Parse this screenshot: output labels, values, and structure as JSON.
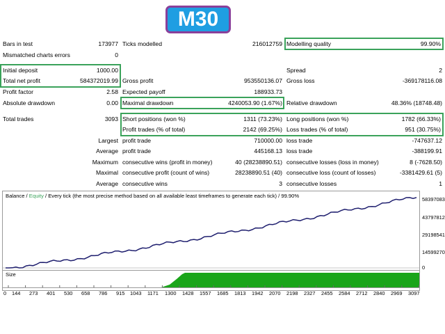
{
  "badge": "M30",
  "stats": {
    "bars_label": "Bars in test",
    "bars_value": "173977",
    "ticks_label": "Ticks modelled",
    "ticks_value": "216012759",
    "modelling_label": "Modelling quality",
    "modelling_value": "99.90%",
    "mismatched_label": "Mismatched charts errors",
    "mismatched_value": "0",
    "initial_deposit_label": "Initial deposit",
    "initial_deposit_value": "1000.00",
    "spread_label": "Spread",
    "spread_value": "2",
    "total_net_profit_label": "Total net profit",
    "total_net_profit_value": "584372019.99",
    "gross_profit_label": "Gross profit",
    "gross_profit_value": "953550136.07",
    "gross_loss_label": "Gross loss",
    "gross_loss_value": "-369178116.08",
    "profit_factor_label": "Profit factor",
    "profit_factor_value": "2.58",
    "expected_payoff_label": "Expected payoff",
    "expected_payoff_value": "188933.73",
    "abs_drawdown_label": "Absolute drawdown",
    "abs_drawdown_value": "0.00",
    "max_drawdown_label": "Maximal drawdown",
    "max_drawdown_value": "4240053.90 (1.67%)",
    "rel_drawdown_label": "Relative drawdown",
    "rel_drawdown_value": "48.36% (18748.48)",
    "total_trades_label": "Total trades",
    "total_trades_value": "3093",
    "short_label": "Short positions (won %)",
    "short_value": "1311 (73.23%)",
    "long_label": "Long positions (won %)",
    "long_value": "1782 (66.33%)",
    "profit_trades_label": "Profit trades (% of total)",
    "profit_trades_value": "2142 (69.25%)",
    "loss_trades_label": "Loss trades (% of total)",
    "loss_trades_value": "951 (30.75%)",
    "largest_label": "Largest",
    "largest_profit_label": "profit trade",
    "largest_profit_value": "710000.00",
    "largest_loss_label": "loss trade",
    "largest_loss_value": "-747637.12",
    "average_label": "Average",
    "average_profit_label": "profit trade",
    "average_profit_value": "445168.13",
    "average_loss_label": "loss trade",
    "average_loss_value": "-388199.91",
    "maximum_label": "Maximum",
    "max_cons_wins_label": "consecutive wins (profit in money)",
    "max_cons_wins_value": "40 (28238890.51)",
    "max_cons_losses_label": "consecutive losses (loss in money)",
    "max_cons_losses_value": "8 (-7628.50)",
    "maximal_label": "Maximal",
    "maximal_cons_profit_label": "consecutive profit (count of wins)",
    "maximal_cons_profit_value": "28238890.51 (40)",
    "maximal_cons_loss_label": "consecutive loss (count of losses)",
    "maximal_cons_loss_value": "-3381429.61 (5)",
    "average2_label": "Average",
    "avg_cons_wins_label": "consecutive wins",
    "avg_cons_wins_value": "3",
    "avg_cons_losses_label": "consecutive losses",
    "avg_cons_losses_value": "1"
  },
  "chart": {
    "header_prefix": "Balance / ",
    "header_equity": "Equity",
    "header_rest": " / Every tick (the most precise method based on all available least timeframes to generate each tick) / 99.90%",
    "y_ticks": [
      "58397083",
      "43797812",
      "29198541",
      "14599270",
      "0"
    ],
    "size_label": "Size",
    "x_ticks": [
      "0",
      "144",
      "273",
      "401",
      "530",
      "658",
      "786",
      "915",
      "1043",
      "1171",
      "1300",
      "1428",
      "1557",
      "1685",
      "1813",
      "1942",
      "2070",
      "2198",
      "2327",
      "2455",
      "2584",
      "2712",
      "2840",
      "2969",
      "3097"
    ],
    "balance_color": "#1e1e6e",
    "volume_color": "#1aa51a"
  }
}
